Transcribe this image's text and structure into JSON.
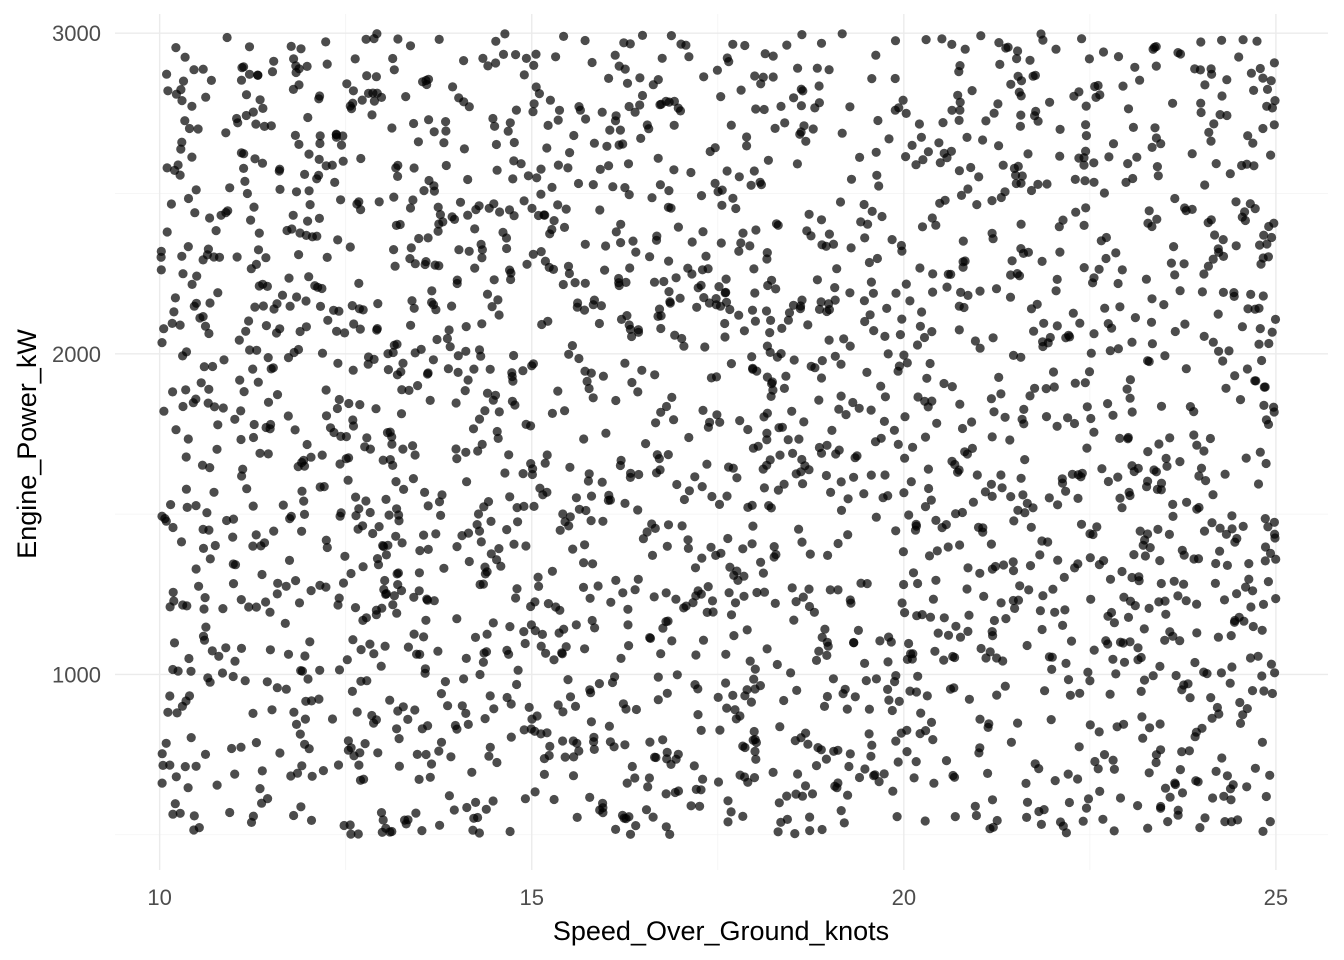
{
  "chart_data": {
    "type": "scatter",
    "xlabel": "Speed_Over_Ground_knots",
    "ylabel": "Engine_Power_kW",
    "xlim": [
      9.4,
      25.7
    ],
    "ylim": [
      390,
      3060
    ],
    "x_ticks": [
      10,
      15,
      20,
      25
    ],
    "x_tick_labels": [
      "10",
      "15",
      "20",
      "25"
    ],
    "y_ticks": [
      1000,
      2000,
      3000
    ],
    "y_tick_labels": [
      "1000",
      "2000",
      "3000"
    ],
    "x_minor_ticks": [
      12.5,
      17.5,
      22.5
    ],
    "y_minor_ticks": [
      500,
      1500,
      2500
    ],
    "grid": true,
    "legend": "none",
    "point_color": "#000000",
    "point_opacity": 0.7,
    "background": "#ffffff",
    "series": [
      {
        "x_range": [
          10.0,
          25.0
        ],
        "y_range": [
          500,
          3000
        ],
        "distribution": "uniform",
        "approx_count": 2500,
        "sample_points": [
          [
            10.1,
            2580
          ],
          [
            10.3,
            2790
          ],
          [
            10.6,
            1960
          ],
          [
            10.9,
            1480
          ],
          [
            11.3,
            1210
          ],
          [
            11.8,
            2920
          ],
          [
            12.2,
            700
          ],
          [
            12.7,
            2450
          ],
          [
            13.1,
            1670
          ],
          [
            13.6,
            840
          ],
          [
            14.0,
            2230
          ],
          [
            14.4,
            1320
          ],
          [
            14.9,
            2870
          ],
          [
            15.3,
            610
          ],
          [
            15.8,
            1940
          ],
          [
            16.2,
            1050
          ],
          [
            16.7,
            2610
          ],
          [
            17.1,
            1420
          ],
          [
            17.6,
            2190
          ],
          [
            18.0,
            760
          ],
          [
            18.5,
            1270
          ],
          [
            18.9,
            2340
          ],
          [
            19.4,
            1830
          ],
          [
            19.8,
            920
          ],
          [
            20.3,
            2980
          ],
          [
            20.7,
            1150
          ],
          [
            21.2,
            2050
          ],
          [
            21.6,
            1560
          ],
          [
            22.1,
            2700
          ],
          [
            22.5,
            980
          ],
          [
            23.0,
            1890
          ],
          [
            23.4,
            2420
          ],
          [
            23.9,
            1360
          ],
          [
            24.3,
            620
          ],
          [
            24.8,
            2280
          ],
          [
            24.9,
            1780
          ]
        ]
      }
    ]
  }
}
